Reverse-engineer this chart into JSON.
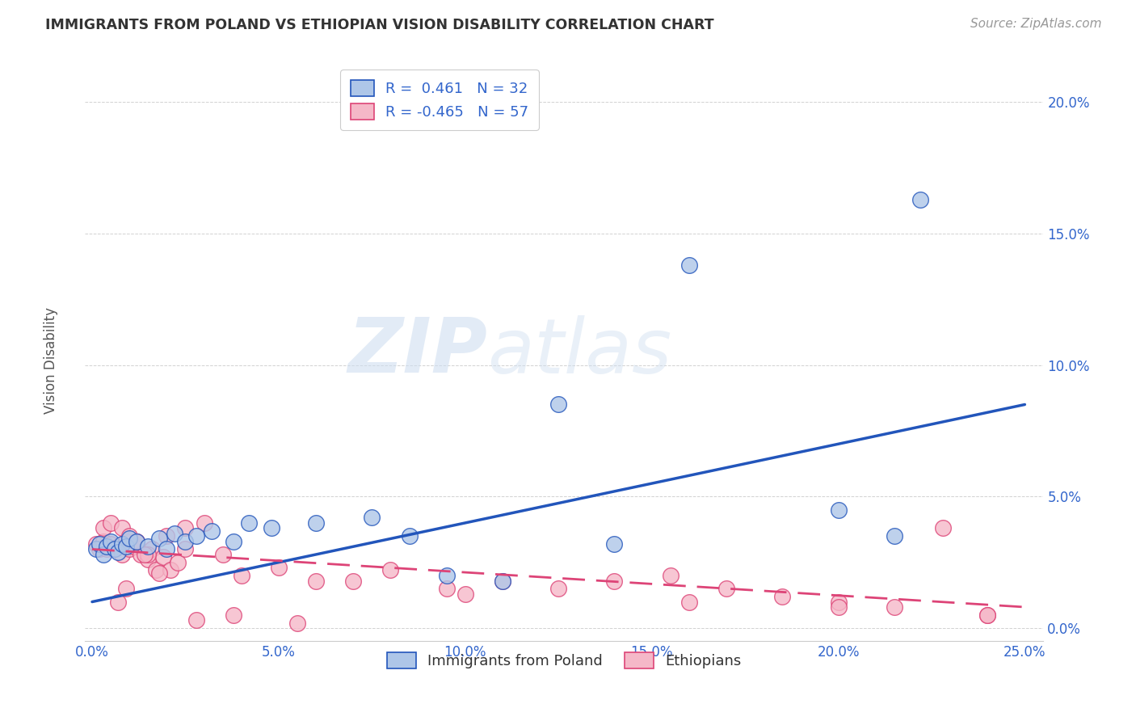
{
  "title": "IMMIGRANTS FROM POLAND VS ETHIOPIAN VISION DISABILITY CORRELATION CHART",
  "source": "Source: ZipAtlas.com",
  "ylabel": "Vision Disability",
  "xlabel_ticks": [
    "0.0%",
    "5.0%",
    "10.0%",
    "15.0%",
    "20.0%",
    "25.0%"
  ],
  "xlabel_vals": [
    0.0,
    0.05,
    0.1,
    0.15,
    0.2,
    0.25
  ],
  "ylabel_ticks": [
    "0.0%",
    "5.0%",
    "10.0%",
    "15.0%",
    "20.0%"
  ],
  "ylabel_vals": [
    0.0,
    0.05,
    0.1,
    0.15,
    0.2
  ],
  "xlim": [
    -0.002,
    0.255
  ],
  "ylim": [
    -0.005,
    0.215
  ],
  "poland_color": "#aec6e8",
  "ethiopia_color": "#f5b8c8",
  "poland_line_color": "#2255bb",
  "ethiopia_line_color": "#dd4477",
  "poland_R": 0.461,
  "poland_N": 32,
  "ethiopia_R": -0.465,
  "ethiopia_N": 57,
  "watermark_zip": "ZIP",
  "watermark_atlas": "atlas",
  "poland_points_x": [
    0.001,
    0.002,
    0.003,
    0.004,
    0.005,
    0.006,
    0.007,
    0.008,
    0.009,
    0.01,
    0.012,
    0.015,
    0.018,
    0.02,
    0.022,
    0.025,
    0.028,
    0.032,
    0.038,
    0.042,
    0.048,
    0.06,
    0.075,
    0.085,
    0.095,
    0.11,
    0.125,
    0.14,
    0.16,
    0.2,
    0.215,
    0.222
  ],
  "poland_points_y": [
    0.03,
    0.032,
    0.028,
    0.031,
    0.033,
    0.03,
    0.029,
    0.032,
    0.031,
    0.034,
    0.033,
    0.031,
    0.034,
    0.03,
    0.036,
    0.033,
    0.035,
    0.037,
    0.033,
    0.04,
    0.038,
    0.04,
    0.042,
    0.035,
    0.02,
    0.018,
    0.085,
    0.032,
    0.138,
    0.045,
    0.035,
    0.163
  ],
  "ethiopia_points_x": [
    0.001,
    0.002,
    0.003,
    0.004,
    0.005,
    0.006,
    0.007,
    0.008,
    0.009,
    0.01,
    0.011,
    0.012,
    0.013,
    0.015,
    0.016,
    0.017,
    0.019,
    0.021,
    0.023,
    0.025,
    0.003,
    0.005,
    0.008,
    0.01,
    0.012,
    0.015,
    0.02,
    0.025,
    0.03,
    0.035,
    0.04,
    0.05,
    0.06,
    0.07,
    0.08,
    0.095,
    0.11,
    0.125,
    0.14,
    0.155,
    0.17,
    0.185,
    0.2,
    0.215,
    0.228,
    0.24,
    0.007,
    0.009,
    0.014,
    0.018,
    0.028,
    0.038,
    0.055,
    0.1,
    0.16,
    0.2,
    0.24
  ],
  "ethiopia_points_y": [
    0.032,
    0.03,
    0.033,
    0.03,
    0.032,
    0.03,
    0.031,
    0.028,
    0.033,
    0.03,
    0.031,
    0.033,
    0.028,
    0.026,
    0.03,
    0.022,
    0.027,
    0.022,
    0.025,
    0.03,
    0.038,
    0.04,
    0.038,
    0.035,
    0.033,
    0.028,
    0.035,
    0.038,
    0.04,
    0.028,
    0.02,
    0.023,
    0.018,
    0.018,
    0.022,
    0.015,
    0.018,
    0.015,
    0.018,
    0.02,
    0.015,
    0.012,
    0.01,
    0.008,
    0.038,
    0.005,
    0.01,
    0.015,
    0.028,
    0.021,
    0.003,
    0.005,
    0.002,
    0.013,
    0.01,
    0.008,
    0.005
  ],
  "poland_line_x": [
    0.0,
    0.25
  ],
  "poland_line_y": [
    0.01,
    0.085
  ],
  "ethiopia_line_x": [
    0.0,
    0.25
  ],
  "ethiopia_line_y": [
    0.03,
    0.008
  ]
}
